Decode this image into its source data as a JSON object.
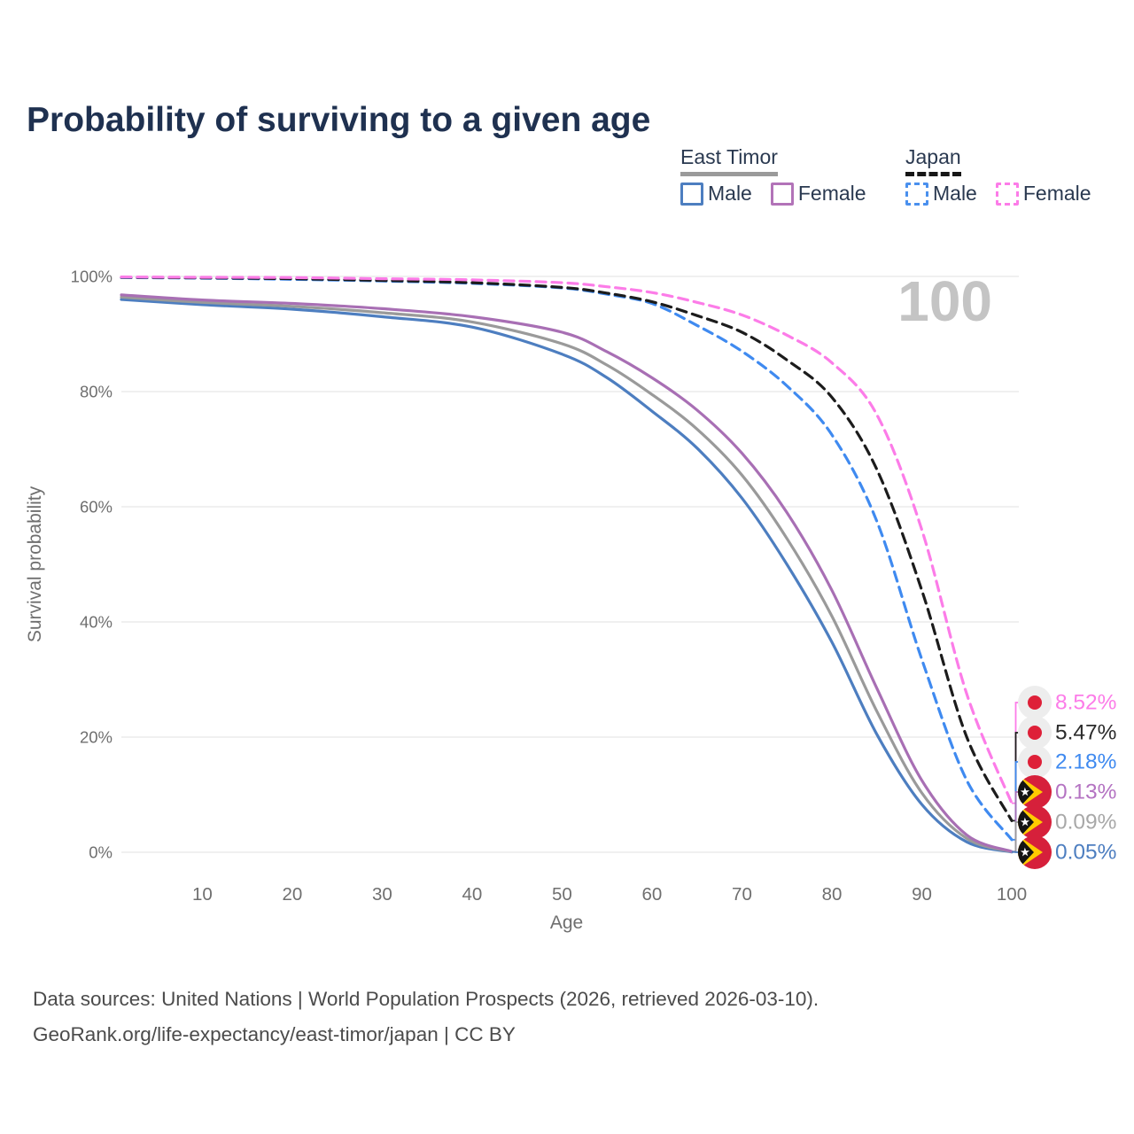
{
  "page": {
    "title": "Probability of surviving to a given age",
    "watermark_age": "100",
    "footer_line1": "Data sources: United Nations | World Population Prospects (2026, retrieved 2026-03-10).",
    "footer_line2": "GeoRank.org/life-expectancy/east-timor/japan | CC BY"
  },
  "legend": {
    "groups": [
      {
        "name": "East Timor",
        "line_style": "solid",
        "underline_color": "#9a9a9a",
        "items": [
          {
            "label": "Male",
            "color": "#4d7ec0"
          },
          {
            "label": "Female",
            "color": "#b273b8"
          }
        ]
      },
      {
        "name": "Japan",
        "line_style": "dashed",
        "underline_color": "#161616",
        "items": [
          {
            "label": "Male",
            "color": "#4a90ee"
          },
          {
            "label": "Female",
            "color": "#fc7ce8"
          }
        ]
      }
    ]
  },
  "chart_data": {
    "type": "line",
    "title": "Probability of surviving to a given age",
    "xlabel": "Age",
    "ylabel": "Survival probability",
    "xlim": [
      1,
      100
    ],
    "ylim": [
      0,
      100
    ],
    "grid": "horizontal",
    "x_ticks": [
      10,
      20,
      30,
      40,
      50,
      60,
      70,
      80,
      90,
      100
    ],
    "y_ticks": [
      {
        "value": 0,
        "label": "0%"
      },
      {
        "value": 20,
        "label": "20%"
      },
      {
        "value": 40,
        "label": "40%"
      },
      {
        "value": 60,
        "label": "60%"
      },
      {
        "value": 80,
        "label": "80%"
      },
      {
        "value": 100,
        "label": "100%"
      }
    ],
    "hover_age_indicator": "100",
    "ages": [
      1,
      10,
      20,
      30,
      40,
      50,
      55,
      60,
      65,
      70,
      75,
      80,
      85,
      90,
      95,
      100
    ],
    "series": [
      {
        "id": "east-timor-male",
        "country": "East Timor",
        "sex": "Male",
        "color": "#4d7ec0",
        "dash": false,
        "values": [
          96.0,
          95.1,
          94.3,
          93.0,
          91.2,
          86.5,
          82.4,
          76.6,
          70.2,
          61.5,
          50.0,
          36.5,
          20.5,
          8.3,
          1.8,
          0.05
        ],
        "end_value_label": "0.05%"
      },
      {
        "id": "east-timor-average",
        "country": "East Timor",
        "sex": "Both sexes",
        "color": "#9a9a9a",
        "dash": false,
        "values": [
          96.4,
          95.5,
          94.8,
          93.7,
          92.1,
          88.3,
          84.6,
          79.5,
          73.5,
          65.5,
          54.5,
          41.0,
          24.5,
          10.3,
          2.4,
          0.09
        ],
        "end_value_label": "0.09%"
      },
      {
        "id": "east-timor-female",
        "country": "East Timor",
        "sex": "Female",
        "color": "#a86fb4",
        "dash": false,
        "values": [
          96.8,
          95.9,
          95.3,
          94.4,
          93.0,
          90.3,
          86.9,
          82.4,
          76.8,
          69.3,
          59.0,
          45.5,
          28.5,
          12.5,
          3.0,
          0.13
        ],
        "end_value_label": "0.13%"
      },
      {
        "id": "japan-male",
        "country": "Japan",
        "sex": "Male",
        "color": "#3f8af0",
        "dash": true,
        "values": [
          99.8,
          99.7,
          99.5,
          99.2,
          98.8,
          98.0,
          96.9,
          95.3,
          91.5,
          87.0,
          81.0,
          72.5,
          57.5,
          33.5,
          12.5,
          2.18
        ],
        "end_value_label": "2.18%"
      },
      {
        "id": "japan-average",
        "country": "Japan",
        "sex": "Both sexes",
        "color": "#1c1c1c",
        "dash": true,
        "values": [
          99.85,
          99.75,
          99.6,
          99.3,
          98.9,
          98.1,
          97.1,
          95.6,
          93.2,
          90.3,
          85.5,
          79.0,
          66.5,
          45.5,
          20.0,
          5.47
        ],
        "end_value_label": "5.47%"
      },
      {
        "id": "japan-female",
        "country": "Japan",
        "sex": "Female",
        "color": "#fc7ce8",
        "dash": true,
        "values": [
          99.9,
          99.85,
          99.8,
          99.6,
          99.4,
          98.9,
          98.2,
          97.2,
          95.5,
          93.3,
          89.8,
          85.0,
          76.0,
          56.0,
          27.5,
          8.52
        ],
        "end_value_label": "8.52%"
      }
    ]
  },
  "end_labels": [
    {
      "text": "8.52%",
      "color": "#fc7ce8",
      "flag": "japan",
      "series": "japan-female"
    },
    {
      "text": "5.47%",
      "color": "#2b2b2b",
      "flag": "japan",
      "series": "japan-average"
    },
    {
      "text": "2.18%",
      "color": "#3f8af0",
      "flag": "japan",
      "series": "japan-male"
    },
    {
      "text": "0.13%",
      "color": "#b473c2",
      "flag": "east-timor",
      "series": "east-timor-female"
    },
    {
      "text": "0.09%",
      "color": "#a8a8a8",
      "flag": "east-timor",
      "series": "east-timor-average"
    },
    {
      "text": "0.05%",
      "color": "#4d7ec0",
      "flag": "east-timor",
      "series": "east-timor-male"
    }
  ]
}
